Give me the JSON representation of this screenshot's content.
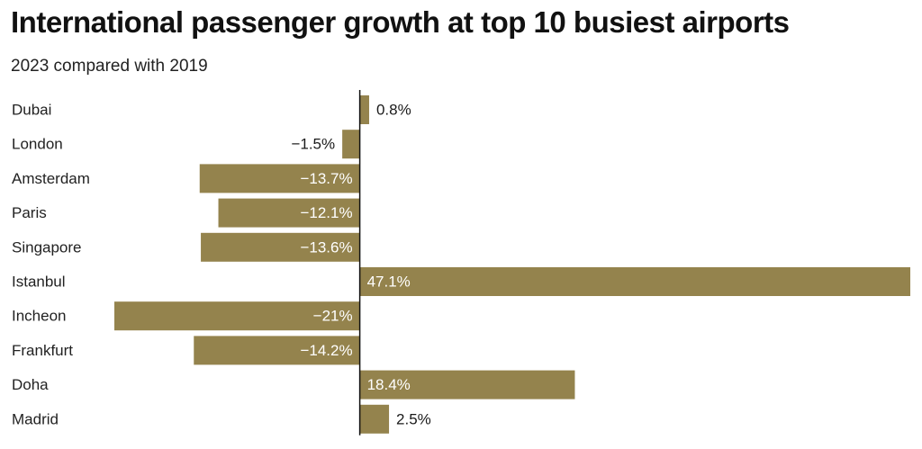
{
  "chart_data": {
    "type": "bar",
    "orientation": "horizontal",
    "title": "International passenger growth at top 10 busiest airports",
    "subtitle": "2023 compared with 2019",
    "categories": [
      "Dubai",
      "London",
      "Amsterdam",
      "Paris",
      "Singapore",
      "Istanbul",
      "Incheon",
      "Frankfurt",
      "Doha",
      "Madrid"
    ],
    "values": [
      0.8,
      -1.5,
      -13.7,
      -12.1,
      -13.6,
      47.1,
      -21,
      -14.2,
      18.4,
      2.5
    ],
    "value_labels": [
      "0.8%",
      "−1.5%",
      "−13.7%",
      "−12.1%",
      "−13.6%",
      "47.1%",
      "−21%",
      "−14.2%",
      "18.4%",
      "2.5%"
    ],
    "xlim": [
      -21,
      47.1
    ],
    "grid": false,
    "legend": "none",
    "colors": {
      "bar": "#94834d",
      "axis": "#111111",
      "label_inside": "#ffffff",
      "label_outside": "#1a1a1a"
    }
  }
}
